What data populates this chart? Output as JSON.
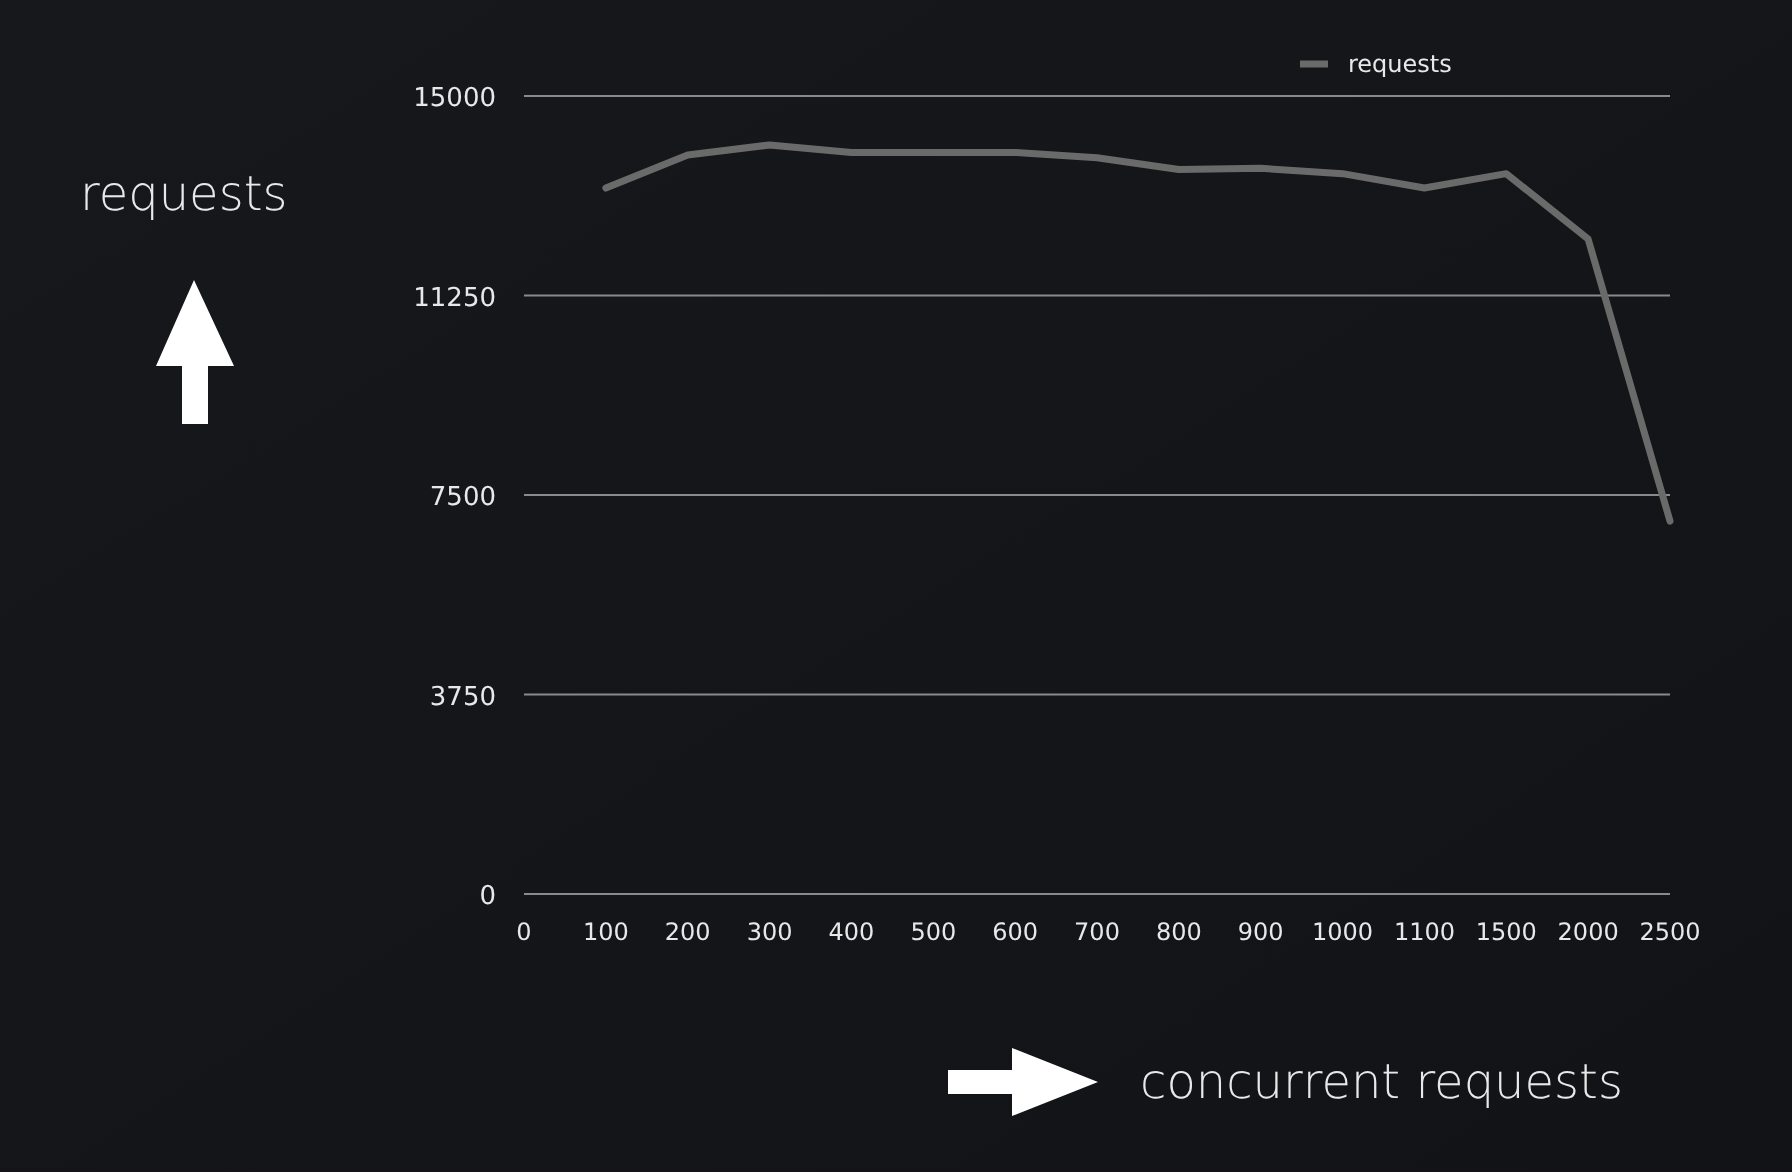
{
  "chart_data": {
    "type": "line",
    "ylabel": "requests",
    "xlabel": "concurrent requests",
    "categories": [
      "0",
      "100",
      "200",
      "300",
      "400",
      "500",
      "600",
      "700",
      "800",
      "900",
      "1000",
      "1100",
      "1500",
      "2000",
      "2500"
    ],
    "series": [
      {
        "name": "requests",
        "color": "#6a6a6a",
        "values": [
          null,
          13270,
          13890,
          14080,
          13940,
          13940,
          13940,
          13840,
          13620,
          13640,
          13540,
          13270,
          13540,
          12310,
          7010
        ]
      }
    ],
    "ylim": [
      0,
      15000
    ],
    "yticks": [
      0,
      3750,
      7500,
      11250,
      15000
    ],
    "grid": "y",
    "legend": "top right",
    "marker": "none",
    "line_style": "solid"
  }
}
